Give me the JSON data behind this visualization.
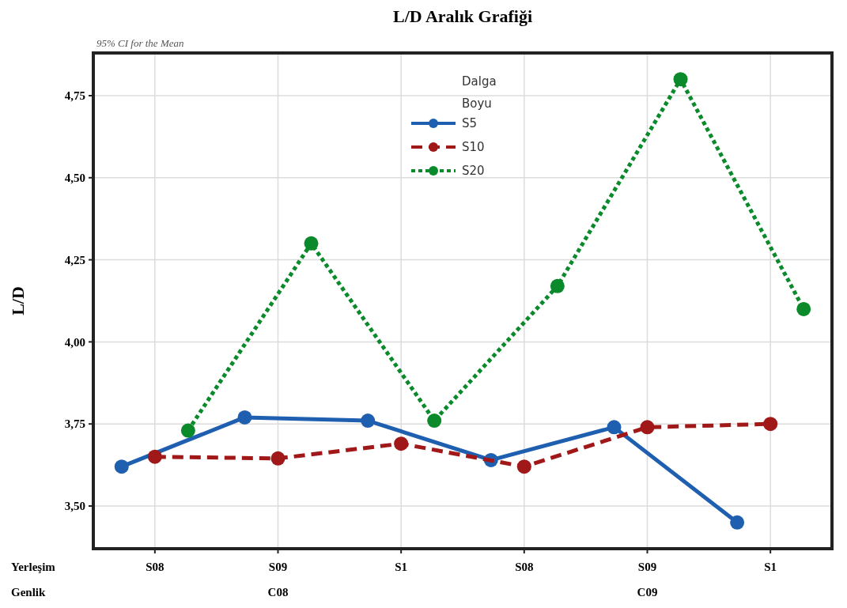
{
  "chart_data": {
    "type": "line",
    "title": "L/D Aralık Grafiği",
    "ylabel": "L/D",
    "legend_title": "Dalga Boyu",
    "annotations": [
      "95% CI for the Mean",
      "Yerleşim",
      "Genlik",
      "C08",
      "C09"
    ],
    "categories": [
      "S08",
      "S09",
      "S1",
      "S08",
      "S09",
      "S1"
    ],
    "series": [
      {
        "name": "S5",
        "color": "#1f5fb0",
        "line_style": "solid",
        "values": [
          3.62,
          3.77,
          3.76,
          3.64,
          3.74,
          3.45
        ]
      },
      {
        "name": "S10",
        "color": "#a01818",
        "line_style": "dashed",
        "values": [
          3.65,
          3.645,
          3.69,
          3.62,
          3.74,
          3.75
        ]
      },
      {
        "name": "S20",
        "color": "#0a8a2a",
        "line_style": "dotted",
        "values": [
          3.73,
          4.3,
          3.76,
          4.17,
          4.8,
          4.1
        ]
      }
    ],
    "ylim": [
      3.37,
      4.88
    ],
    "yticks": [
      {
        "value": 3.5,
        "label": "3,50"
      },
      {
        "value": 3.75,
        "label": "3,75"
      },
      {
        "value": 4.0,
        "label": "4,00"
      },
      {
        "value": 4.25,
        "label": "4,25"
      },
      {
        "value": 4.5,
        "label": "4,50"
      },
      {
        "value": 4.75,
        "label": "4,75"
      }
    ],
    "grid": true,
    "legend": "top",
    "marker": "circle"
  }
}
